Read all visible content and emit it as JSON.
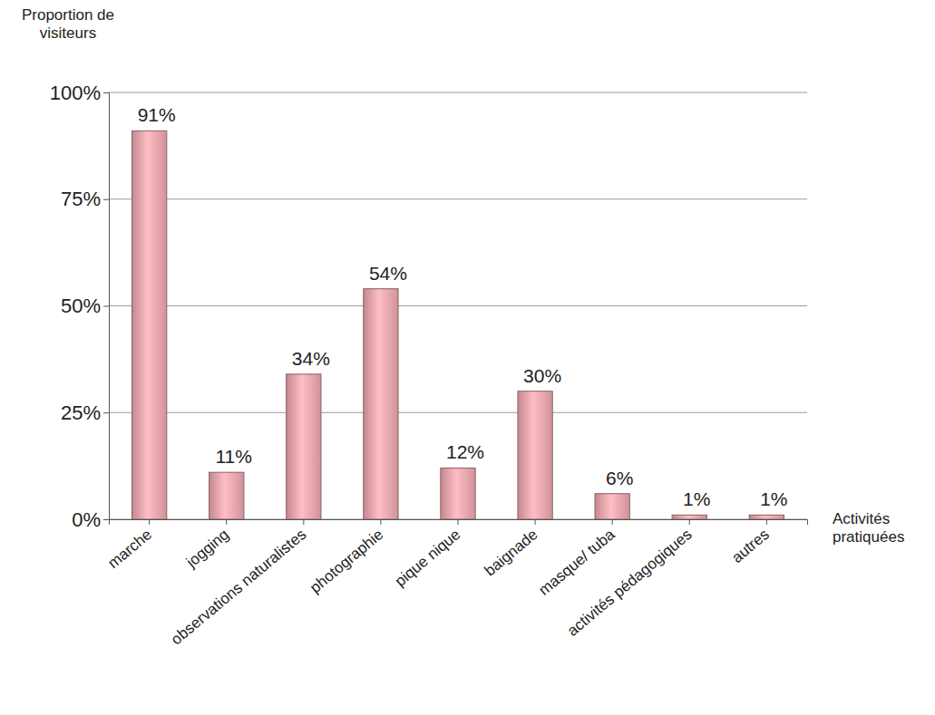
{
  "chart_data": {
    "type": "bar",
    "y_label": "Proportion de visiteurs",
    "x_label": "Activités pratiquées",
    "categories": [
      "marche",
      "jogging",
      "observations naturalistes",
      "photographie",
      "pique nique",
      "baignade",
      "masque/ tuba",
      "activités pédagogiques",
      "autres"
    ],
    "values": [
      91,
      11,
      34,
      54,
      12,
      30,
      6,
      1,
      1
    ],
    "value_labels": [
      "91%",
      "11%",
      "34%",
      "54%",
      "12%",
      "30%",
      "6%",
      "1%",
      "1%"
    ],
    "data_labels": true,
    "color": "#e8a4aa",
    "ylim": [
      0,
      100
    ],
    "yticks": [
      {
        "value": 0,
        "label": "0%"
      },
      {
        "value": 25,
        "label": "25%"
      },
      {
        "value": 50,
        "label": "50%"
      },
      {
        "value": 75,
        "label": "75%"
      },
      {
        "value": 100,
        "label": "100%"
      }
    ],
    "grid": true
  }
}
